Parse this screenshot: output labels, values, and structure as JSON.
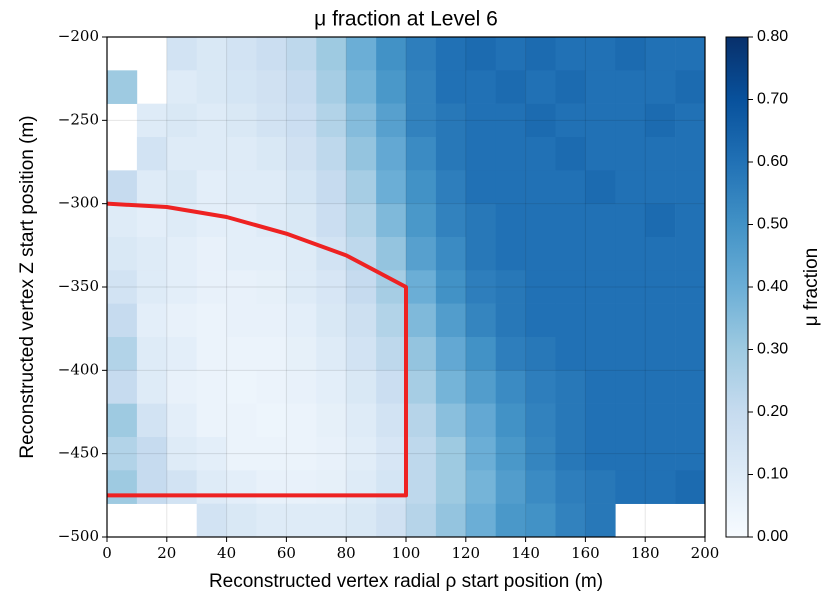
{
  "chart_data": {
    "type": "heatmap",
    "title": "μ fraction at Level 6",
    "xlabel": "Reconstructed vertex radial ρ start position (m)",
    "ylabel": "Reconstructed vertex Z start position (m)",
    "colorbar_label": "μ fraction",
    "xbins": [
      0,
      10,
      20,
      30,
      40,
      50,
      60,
      70,
      80,
      90,
      100,
      110,
      120,
      130,
      140,
      150,
      160,
      170,
      180,
      190,
      200
    ],
    "ybins": [
      -200,
      -220,
      -240,
      -260,
      -280,
      -300,
      -320,
      -340,
      -360,
      -380,
      -400,
      -420,
      -440,
      -460,
      -480,
      -500
    ],
    "values": [
      [
        null,
        null,
        0.15,
        0.12,
        0.15,
        0.18,
        0.22,
        0.3,
        0.4,
        0.5,
        0.56,
        0.6,
        0.62,
        0.6,
        0.62,
        0.6,
        0.6,
        0.62,
        0.6,
        0.6
      ],
      [
        0.3,
        null,
        0.1,
        0.12,
        0.14,
        0.16,
        0.2,
        0.28,
        0.38,
        0.48,
        0.55,
        0.6,
        0.6,
        0.62,
        0.6,
        0.62,
        0.6,
        0.6,
        0.6,
        0.62
      ],
      [
        null,
        0.1,
        0.12,
        0.1,
        0.12,
        0.15,
        0.18,
        0.25,
        0.35,
        0.45,
        0.55,
        0.58,
        0.6,
        0.6,
        0.62,
        0.6,
        0.6,
        0.6,
        0.62,
        0.6
      ],
      [
        null,
        0.15,
        0.1,
        0.1,
        0.1,
        0.12,
        0.16,
        0.22,
        0.32,
        0.42,
        0.52,
        0.58,
        0.6,
        0.6,
        0.6,
        0.62,
        0.6,
        0.6,
        0.6,
        0.6
      ],
      [
        0.2,
        0.1,
        0.12,
        0.08,
        0.1,
        0.1,
        0.14,
        0.2,
        0.28,
        0.4,
        0.5,
        0.56,
        0.6,
        0.6,
        0.6,
        0.6,
        0.62,
        0.6,
        0.6,
        0.6
      ],
      [
        0.1,
        0.08,
        0.1,
        0.08,
        0.08,
        0.1,
        0.12,
        0.18,
        0.25,
        0.36,
        0.48,
        0.55,
        0.58,
        0.6,
        0.6,
        0.6,
        0.6,
        0.6,
        0.62,
        0.6
      ],
      [
        0.12,
        0.1,
        0.08,
        0.06,
        0.08,
        0.08,
        0.1,
        0.15,
        0.22,
        0.32,
        0.45,
        0.52,
        0.58,
        0.6,
        0.6,
        0.6,
        0.6,
        0.6,
        0.6,
        0.6
      ],
      [
        0.15,
        0.1,
        0.08,
        0.06,
        0.06,
        0.07,
        0.1,
        0.13,
        0.2,
        0.28,
        0.4,
        0.5,
        0.56,
        0.58,
        0.6,
        0.6,
        0.6,
        0.6,
        0.6,
        0.6
      ],
      [
        0.2,
        0.08,
        0.06,
        0.05,
        0.06,
        0.06,
        0.08,
        0.12,
        0.17,
        0.25,
        0.36,
        0.46,
        0.54,
        0.58,
        0.6,
        0.6,
        0.6,
        0.6,
        0.6,
        0.6
      ],
      [
        0.25,
        0.1,
        0.08,
        0.05,
        0.05,
        0.05,
        0.07,
        0.1,
        0.15,
        0.22,
        0.32,
        0.42,
        0.5,
        0.56,
        0.58,
        0.6,
        0.6,
        0.6,
        0.6,
        0.6
      ],
      [
        0.2,
        0.1,
        0.06,
        0.05,
        0.04,
        0.05,
        0.06,
        0.08,
        0.12,
        0.18,
        0.28,
        0.38,
        0.46,
        0.52,
        0.56,
        0.58,
        0.6,
        0.6,
        0.6,
        0.6
      ],
      [
        0.3,
        0.15,
        0.08,
        0.05,
        0.05,
        0.04,
        0.05,
        0.07,
        0.1,
        0.15,
        0.24,
        0.34,
        0.42,
        0.5,
        0.55,
        0.58,
        0.6,
        0.6,
        0.6,
        0.6
      ],
      [
        0.25,
        0.2,
        0.1,
        0.08,
        0.05,
        0.05,
        0.05,
        0.06,
        0.09,
        0.13,
        0.22,
        0.3,
        0.4,
        0.48,
        0.54,
        0.58,
        0.6,
        0.6,
        0.6,
        0.6
      ],
      [
        0.3,
        0.2,
        0.15,
        0.1,
        0.08,
        0.06,
        0.06,
        0.07,
        0.1,
        0.14,
        0.22,
        0.3,
        0.38,
        0.46,
        0.52,
        0.56,
        0.58,
        0.6,
        0.6,
        0.62
      ],
      [
        null,
        null,
        null,
        0.15,
        0.12,
        0.1,
        0.1,
        0.1,
        0.12,
        0.16,
        0.24,
        0.32,
        0.4,
        0.48,
        0.5,
        0.55,
        0.58,
        null,
        null,
        null
      ]
    ],
    "xlim": [
      0,
      200
    ],
    "ylim": [
      -500,
      -200
    ],
    "clim": [
      0,
      0.8
    ],
    "colormap": "Blues",
    "colormap_colors": [
      "#f7fbff",
      "#deebf7",
      "#c6dbef",
      "#9ecae1",
      "#6baed6",
      "#4292c6",
      "#2171b5",
      "#08519c",
      "#08306b"
    ],
    "xticks": [
      0,
      20,
      40,
      60,
      80,
      100,
      120,
      140,
      160,
      180,
      200
    ],
    "yticks": [
      {
        "value": -200,
        "label": "−200"
      },
      {
        "value": -250,
        "label": "−250"
      },
      {
        "value": -300,
        "label": "−300"
      },
      {
        "value": -350,
        "label": "−350"
      },
      {
        "value": -400,
        "label": "−400"
      },
      {
        "value": -450,
        "label": "−450"
      },
      {
        "value": -500,
        "label": "−500"
      }
    ],
    "cticks": [
      {
        "value": 0,
        "label": "0.00"
      },
      {
        "value": 0.1,
        "label": "0.10"
      },
      {
        "value": 0.2,
        "label": "0.20"
      },
      {
        "value": 0.3,
        "label": "0.30"
      },
      {
        "value": 0.4,
        "label": "0.40"
      },
      {
        "value": 0.5,
        "label": "0.50"
      },
      {
        "value": 0.6,
        "label": "0.60"
      },
      {
        "value": 0.7,
        "label": "0.70"
      },
      {
        "value": 0.8,
        "label": "0.80"
      }
    ],
    "grid": true,
    "region_boundary": {
      "color": "#ee2222",
      "x": [
        0,
        20,
        40,
        60,
        80,
        100,
        100,
        0
      ],
      "y": [
        -300,
        -302,
        -308,
        -318,
        -331,
        -350,
        -475,
        -475
      ]
    }
  }
}
